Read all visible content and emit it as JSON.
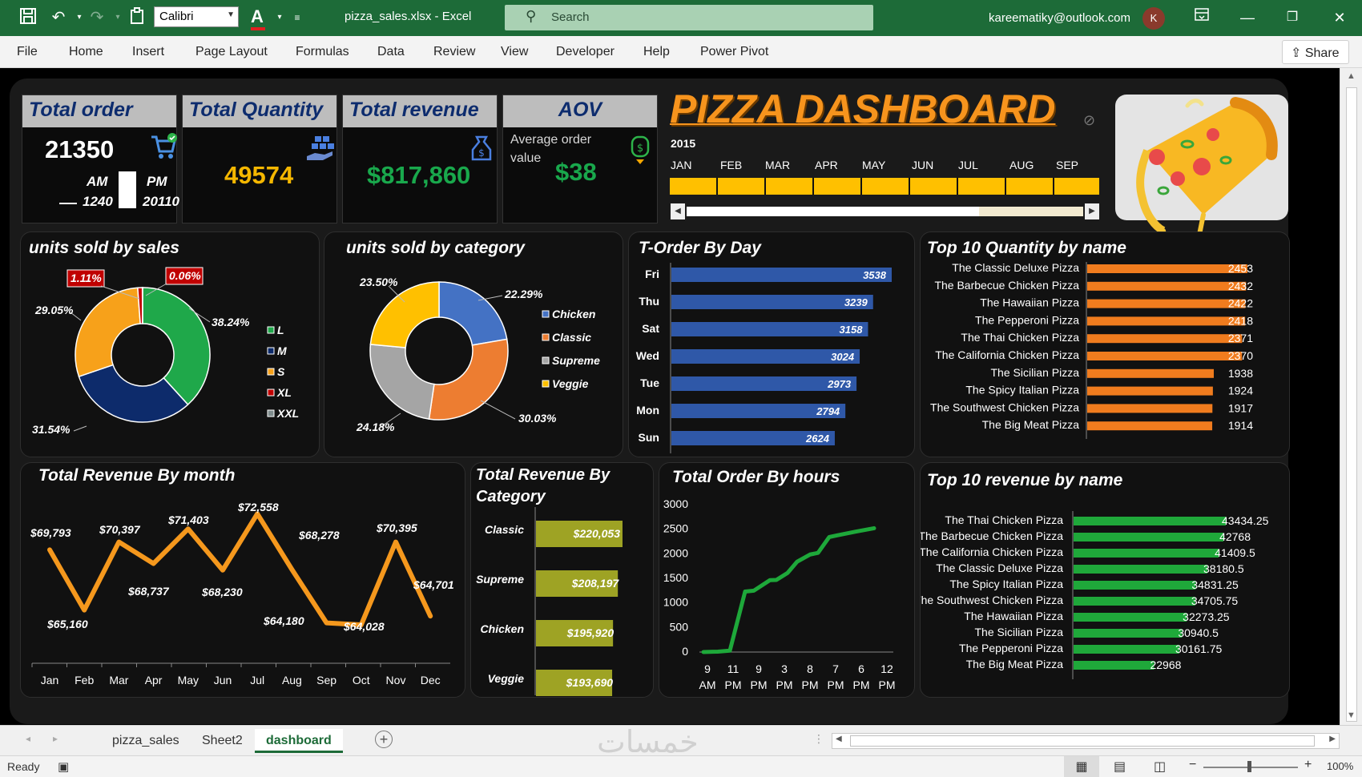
{
  "window": {
    "font_name": "Calibri",
    "doc_title": "pizza_sales.xlsx  -  Excel",
    "search_placeholder": "Search",
    "user_email": "kareematiky@outlook.com",
    "avatar_initial": "K"
  },
  "menu": {
    "items": [
      "File",
      "Home",
      "Insert",
      "Page Layout",
      "Formulas",
      "Data",
      "Review",
      "View",
      "Developer",
      "Help",
      "Power Pivot"
    ],
    "share_label": "Share"
  },
  "sheet_tabs": {
    "tabs": [
      "pizza_sales",
      "Sheet2",
      "dashboard"
    ],
    "active": "dashboard"
  },
  "status": {
    "ready": "Ready",
    "zoom": "100%",
    "watermark": "خمسات"
  },
  "colors": {
    "excel_green": "#1d6b38",
    "orange": "#f7941d",
    "kpi_header_text": "#0d2c6e",
    "bar_blue": "#2f58a8",
    "bar_orange": "#f07c1e",
    "bar_green": "#1fa83a",
    "bar_olive": "#9ea324",
    "line_orange": "#f5981d",
    "line_green": "#1ea83a"
  },
  "kpis": {
    "total_order": {
      "label": "Total order",
      "value": "21350",
      "am_label": "AM",
      "pm_label": "PM",
      "am_value": "1240",
      "pm_value": "20110"
    },
    "total_quantity": {
      "label": "Total Quantity",
      "value": "49574"
    },
    "total_revenue": {
      "label": "Total revenue",
      "value": "$817,860"
    },
    "aov": {
      "label": "AOV",
      "sub": "Average order value",
      "value": "$38"
    }
  },
  "dashboard": {
    "title": "PIZZA DASHBOARD",
    "year": "2015",
    "months": [
      "JAN",
      "FEB",
      "MAR",
      "APR",
      "MAY",
      "JUN",
      "JUL",
      "AUG",
      "SEP"
    ]
  },
  "chart_data": [
    {
      "id": "units_by_size",
      "type": "pie",
      "title": "units sold by sales",
      "categories": [
        "L",
        "M",
        "S",
        "XL",
        "XXL"
      ],
      "values": [
        38.24,
        31.54,
        29.05,
        1.11,
        0.06
      ],
      "labels": [
        "38.24%",
        "31.54%",
        "29.05%",
        "1.11%",
        "0.06%"
      ],
      "colors": [
        "#1fa84a",
        "#0d2b6b",
        "#f7a11a",
        "#c00000",
        "#7f8c8d"
      ],
      "legend": "right"
    },
    {
      "id": "units_by_category",
      "type": "pie",
      "title": "units sold by category",
      "categories": [
        "Chicken",
        "Classic",
        "Supreme",
        "Veggie"
      ],
      "values": [
        22.29,
        30.03,
        24.18,
        23.5
      ],
      "labels": [
        "22.29%",
        "30.03%",
        "24.18%",
        "23.50%"
      ],
      "colors": [
        "#4472c4",
        "#ed7d31",
        "#a5a5a5",
        "#ffc000"
      ],
      "legend": "right"
    },
    {
      "id": "orders_by_day",
      "type": "bar",
      "title": "T-Order By Day",
      "categories": [
        "Fri",
        "Thu",
        "Sat",
        "Wed",
        "Tue",
        "Mon",
        "Sun"
      ],
      "values": [
        3538,
        3239,
        3158,
        3024,
        2973,
        2794,
        2624
      ]
    },
    {
      "id": "top10_quantity",
      "type": "bar",
      "title": "Top 10 Quantity by name",
      "categories": [
        "The Classic Deluxe Pizza",
        "The Barbecue Chicken Pizza",
        "The Hawaiian Pizza",
        "The Pepperoni Pizza",
        "The Thai Chicken Pizza",
        "The California Chicken Pizza",
        "The Sicilian Pizza",
        "The Spicy Italian Pizza",
        "The Southwest Chicken Pizza",
        "The Big Meat Pizza"
      ],
      "values": [
        2453,
        2432,
        2422,
        2418,
        2371,
        2370,
        1938,
        1924,
        1917,
        1914
      ]
    },
    {
      "id": "revenue_by_month",
      "type": "line",
      "title": "Total Revenue By month",
      "categories": [
        "Jan",
        "Feb",
        "Mar",
        "Apr",
        "May",
        "Jun",
        "Jul",
        "Aug",
        "Sep",
        "Oct",
        "Nov",
        "Dec"
      ],
      "values": [
        69793,
        65160,
        70397,
        68737,
        71403,
        68230,
        72558,
        68278,
        64180,
        64028,
        70395,
        64701
      ],
      "labels": [
        "$69,793",
        "$65,160",
        "$70,397",
        "$68,737",
        "$71,403",
        "$68,230",
        "$72,558",
        "$68,278",
        "$64,180",
        "$64,028",
        "$70,395",
        "$64,701"
      ]
    },
    {
      "id": "revenue_by_category",
      "type": "bar",
      "title": "Total Revenue By Category",
      "categories": [
        "Classic",
        "Supreme",
        "Chicken",
        "Veggie"
      ],
      "values": [
        220053,
        208197,
        195920,
        193690
      ],
      "labels": [
        "$220,053",
        "$208,197",
        "$195,920",
        "$193,690"
      ]
    },
    {
      "id": "orders_by_hour",
      "type": "line",
      "title": "Total Order By hours",
      "x": [
        9,
        10,
        11,
        12,
        13,
        14,
        15,
        16,
        17,
        18,
        19,
        20,
        21,
        22,
        23
      ],
      "values": [
        1,
        8,
        28,
        1231,
        1250,
        1463,
        1467,
        1610,
        1840,
        1985,
        2018,
        2340,
        2376,
        2450,
        2520
      ],
      "tick_labels": [
        [
          "9",
          "AM"
        ],
        [
          "11",
          "PM"
        ],
        [
          "9",
          "PM"
        ],
        [
          "3",
          "PM"
        ],
        [
          "8",
          "PM"
        ],
        [
          "7",
          "PM"
        ],
        [
          "6",
          "PM"
        ],
        [
          "12",
          "PM"
        ]
      ],
      "yticks": [
        "3000",
        "2500",
        "2000",
        "1500",
        "1000",
        "500",
        "0"
      ],
      "ylim": [
        0,
        3000
      ]
    },
    {
      "id": "top10_revenue",
      "type": "bar",
      "title": "Top 10 revenue by name",
      "categories": [
        "The Thai Chicken Pizza",
        "The Barbecue Chicken Pizza",
        "The California Chicken Pizza",
        "The Classic Deluxe Pizza",
        "The Spicy Italian Pizza",
        "The Southwest Chicken Pizza",
        "The Hawaiian Pizza",
        "The Sicilian Pizza",
        "The Pepperoni Pizza",
        "The Big Meat Pizza"
      ],
      "values": [
        43434.25,
        42768,
        41409.5,
        38180.5,
        34831.25,
        34705.75,
        32273.25,
        30940.5,
        30161.75,
        22968
      ],
      "labels": [
        "43434.25",
        "42768",
        "41409.5",
        "38180.5",
        "34831.25",
        "34705.75",
        "32273.25",
        "30940.5",
        "30161.75",
        "22968"
      ]
    }
  ]
}
